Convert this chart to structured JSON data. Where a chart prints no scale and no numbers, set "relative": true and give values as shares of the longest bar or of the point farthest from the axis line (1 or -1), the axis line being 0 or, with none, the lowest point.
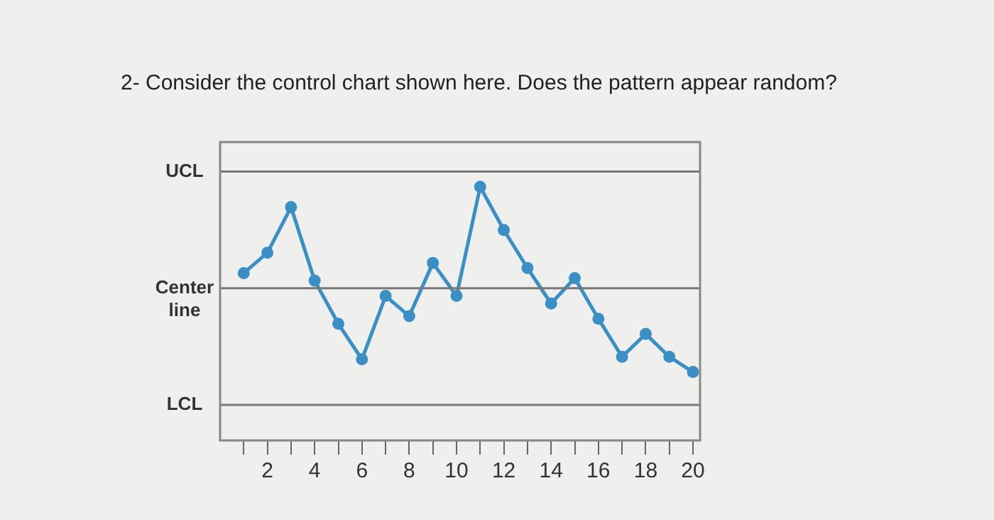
{
  "chart_data": {
    "type": "line",
    "title": "2- Consider the control chart shown here. Does the pattern appear random?",
    "relative": true,
    "x": [
      1,
      2,
      3,
      4,
      5,
      6,
      7,
      8,
      9,
      10,
      11,
      12,
      13,
      14,
      15,
      16,
      17,
      18,
      19,
      20
    ],
    "series": [
      {
        "color": "#3a8fc4",
        "values": [
          0.66,
          0.74,
          0.92,
          0.63,
          0.46,
          0.32,
          0.57,
          0.49,
          0.7,
          0.57,
          1,
          0.83,
          0.68,
          0.54,
          0.64,
          0.48,
          0.33,
          0.42,
          0.33,
          0.27
        ]
      }
    ],
    "xlim": [
      0,
      20.3
    ],
    "xticks": [
      {
        "value": 1,
        "label": null
      },
      2,
      {
        "value": 3,
        "label": null
      },
      4,
      {
        "value": 5,
        "label": null
      },
      6,
      {
        "value": 7,
        "label": null
      },
      8,
      {
        "value": 9,
        "label": null
      },
      10,
      {
        "value": 11,
        "label": null
      },
      12,
      {
        "value": 13,
        "label": null
      },
      14,
      {
        "value": 15,
        "label": null
      },
      16,
      {
        "value": 17,
        "label": null
      },
      18,
      {
        "value": 19,
        "label": null
      },
      20
    ],
    "ref_lines": [
      {
        "axis": "y",
        "value": 1.06,
        "label": "UCL",
        "color": "#777777"
      },
      {
        "axis": "y",
        "value": 0.6,
        "label": "Center line",
        "color": "#777777"
      },
      {
        "axis": "y",
        "value": 0.14,
        "label": "LCL",
        "color": "#777777"
      }
    ],
    "tick_labels": "x",
    "grid": false,
    "legend": false,
    "marker": "circle",
    "line_style": "solid"
  }
}
